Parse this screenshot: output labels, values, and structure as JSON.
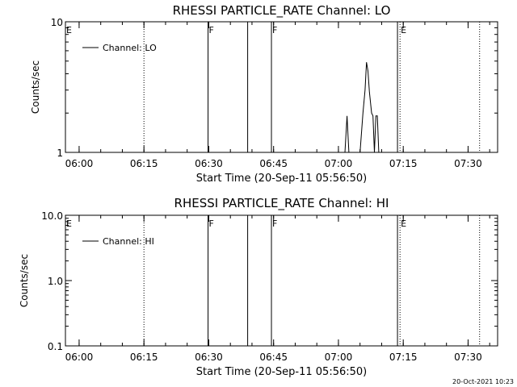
{
  "chart_data": [
    {
      "type": "line",
      "title": "RHESSI PARTICLE_RATE Channel: LO",
      "xlabel": "Start Time (20-Sep-11 05:56:50)",
      "ylabel": "Counts/sec",
      "yscale": "log",
      "ylim": [
        1,
        10
      ],
      "yticks": [
        1,
        10
      ],
      "ytick_labels": [
        "1",
        "10"
      ],
      "xlim": [
        "05:56:50",
        "07:36:50"
      ],
      "xticks": [
        "06:00",
        "06:15",
        "06:30",
        "06:45",
        "07:00",
        "07:15",
        "07:30"
      ],
      "legend": {
        "label": "Channel: LO",
        "position": "top-left"
      },
      "markers": [
        {
          "time": "05:56:50",
          "label": "E",
          "style": "solid"
        },
        {
          "time": "06:15:00",
          "label": "",
          "style": "dotted"
        },
        {
          "time": "06:29:50",
          "label": "F",
          "style": "solid"
        },
        {
          "time": "06:39:00",
          "label": "",
          "style": "solid"
        },
        {
          "time": "06:44:30",
          "label": "F",
          "style": "solid"
        },
        {
          "time": "07:13:40",
          "label": "",
          "style": "solid"
        },
        {
          "time": "07:14:15",
          "label": "E",
          "style": "dotted"
        },
        {
          "time": "07:32:40",
          "label": "",
          "style": "dotted"
        }
      ],
      "series": [
        {
          "name": "Channel: LO",
          "points": [
            [
              "07:01:30",
              1
            ],
            [
              "07:02:00",
              1.9
            ],
            [
              "07:02:25",
              1
            ],
            [
              "07:05:00",
              1
            ],
            [
              "07:05:40",
              2.0
            ],
            [
              "07:06:10",
              3.0
            ],
            [
              "07:06:30",
              4.9
            ],
            [
              "07:06:50",
              4.2
            ],
            [
              "07:07:10",
              2.9
            ],
            [
              "07:07:40",
              2.0
            ],
            [
              "07:08:00",
              1.9
            ],
            [
              "07:08:20",
              1
            ],
            [
              "07:08:40",
              1.9
            ],
            [
              "07:09:00",
              1.9
            ],
            [
              "07:09:20",
              1
            ]
          ]
        }
      ]
    },
    {
      "type": "line",
      "title": "RHESSI PARTICLE_RATE Channel: HI",
      "xlabel": "Start Time (20-Sep-11 05:56:50)",
      "ylabel": "Counts/sec",
      "yscale": "log",
      "ylim": [
        0.1,
        10
      ],
      "yticks": [
        0.1,
        1,
        10
      ],
      "ytick_labels": [
        "0.1",
        "1.0",
        "10.0"
      ],
      "xlim": [
        "05:56:50",
        "07:36:50"
      ],
      "xticks": [
        "06:00",
        "06:15",
        "06:30",
        "06:45",
        "07:00",
        "07:15",
        "07:30"
      ],
      "legend": {
        "label": "Channel: HI",
        "position": "top-left"
      },
      "markers": [
        {
          "time": "05:56:50",
          "label": "E",
          "style": "solid"
        },
        {
          "time": "06:15:00",
          "label": "",
          "style": "dotted"
        },
        {
          "time": "06:29:50",
          "label": "F",
          "style": "solid"
        },
        {
          "time": "06:39:00",
          "label": "",
          "style": "solid"
        },
        {
          "time": "06:44:30",
          "label": "F",
          "style": "solid"
        },
        {
          "time": "07:13:40",
          "label": "",
          "style": "solid"
        },
        {
          "time": "07:14:15",
          "label": "E",
          "style": "dotted"
        },
        {
          "time": "07:32:40",
          "label": "",
          "style": "dotted"
        }
      ],
      "series": [
        {
          "name": "Channel: HI",
          "points": []
        }
      ]
    }
  ],
  "footer": {
    "timestamp": "20-Oct-2021 10:23"
  }
}
